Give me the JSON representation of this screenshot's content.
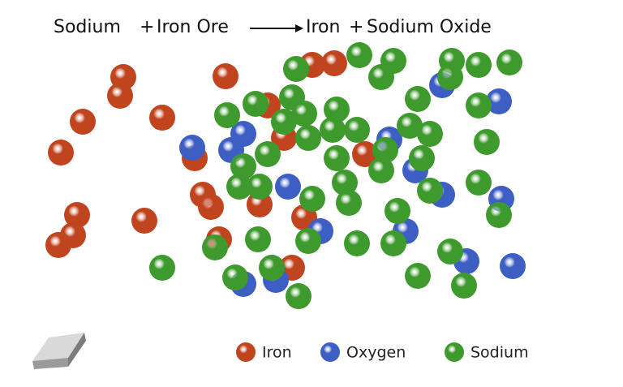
{
  "equation": {
    "reactants": [
      "Sodium",
      "Iron Ore"
    ],
    "products": [
      "Iron",
      "Sodium Oxide"
    ],
    "operator": "+"
  },
  "legend": [
    {
      "label": "Iron",
      "color": "#c0451f"
    },
    {
      "label": "Oxygen",
      "color": "#3d5fc4"
    },
    {
      "label": "Sodium",
      "color": "#3f9a2e"
    }
  ]
}
